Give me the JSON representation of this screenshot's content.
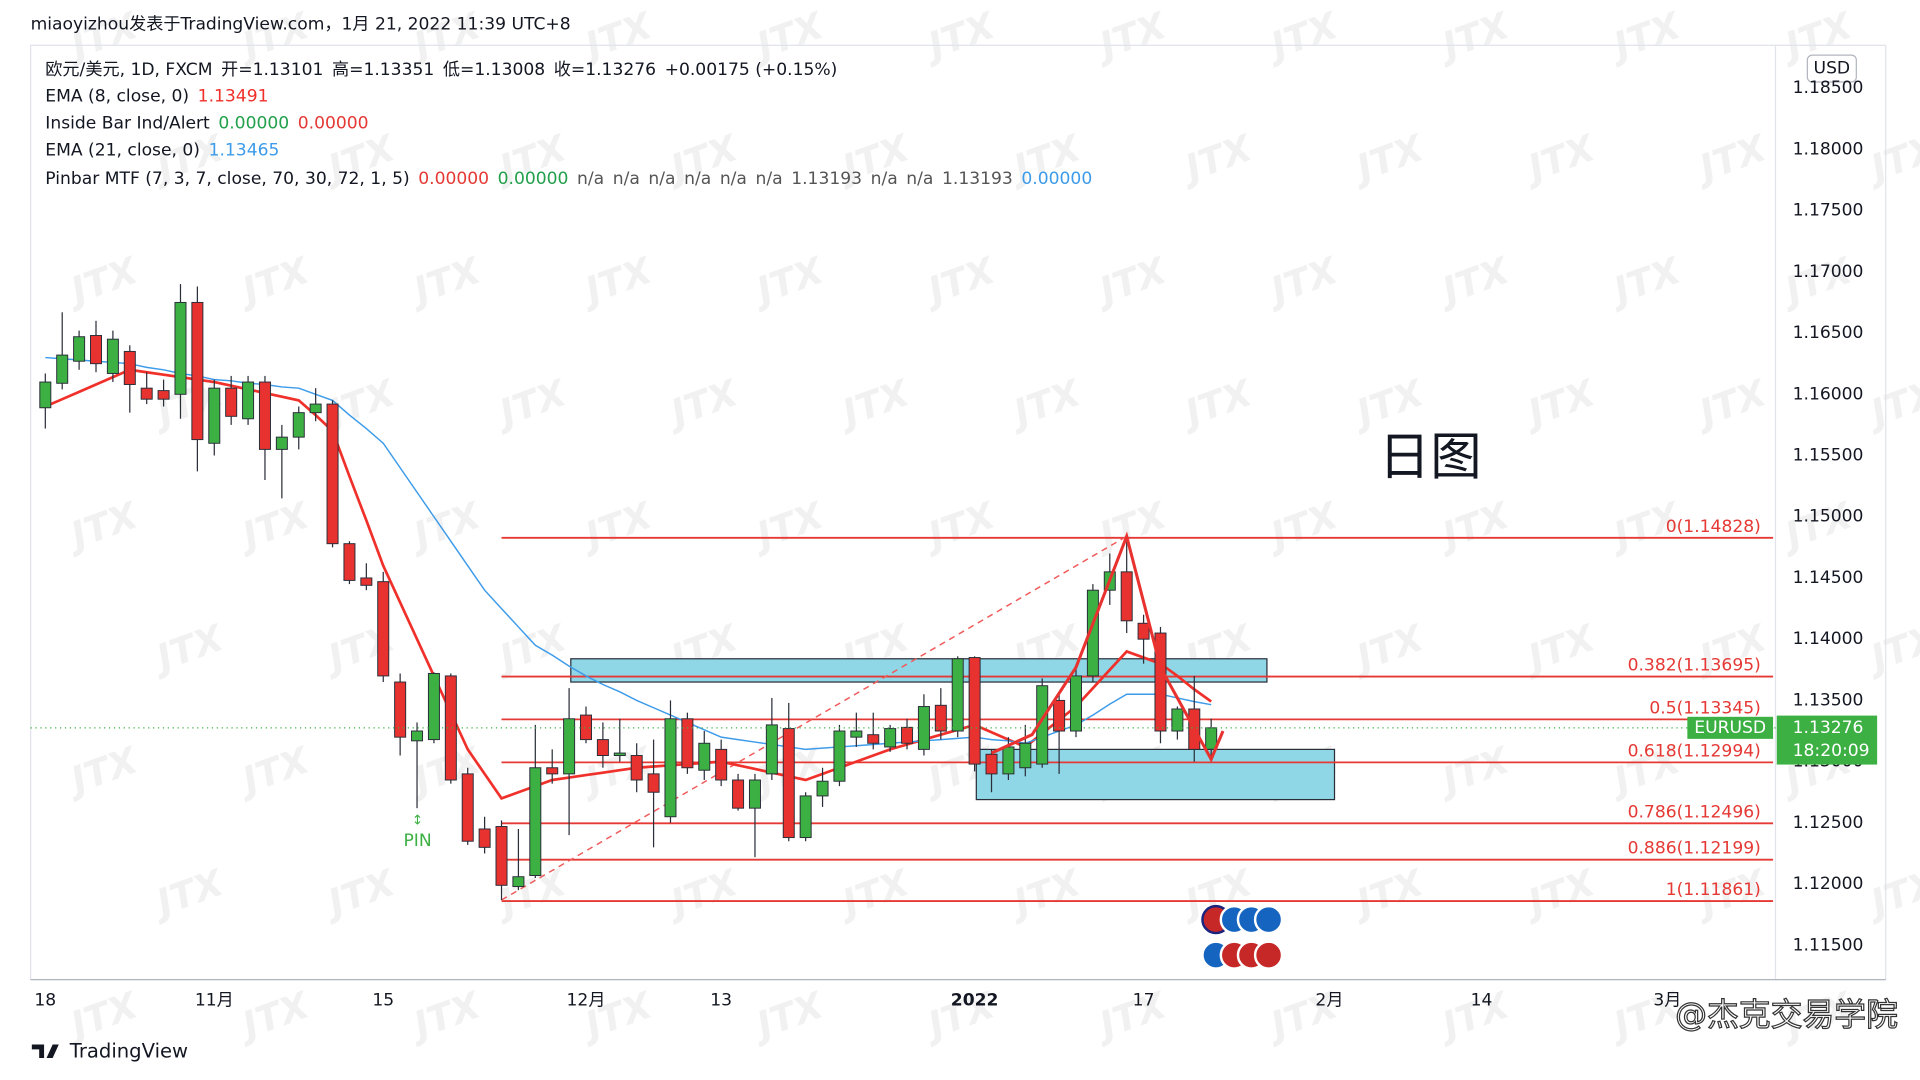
{
  "chart_data": {
    "type": "candlestick",
    "title": "miaoyizhou发表于TradingView.com，1月 21, 2022 11:39 UTC+8",
    "symbol": "欧元/美元, 1D, FXCM",
    "ohlc_labels": [
      "开=",
      "高=",
      "低=",
      "收="
    ],
    "change": "+0.00175 (+0.15%)",
    "x": [
      0,
      1,
      2,
      3,
      4,
      5,
      6,
      7,
      8,
      9,
      10,
      11,
      12,
      13,
      14,
      15,
      16,
      17,
      18,
      19,
      20,
      21,
      22,
      23,
      24,
      25,
      26,
      27,
      28,
      29,
      30,
      31,
      32,
      33,
      34,
      35,
      36,
      37,
      38,
      39,
      40,
      41,
      42,
      43,
      44,
      45,
      46,
      47,
      48,
      49,
      50,
      51,
      52,
      53,
      54,
      55,
      56,
      57,
      58,
      59,
      60,
      61,
      62,
      63,
      64,
      65,
      66,
      67,
      68,
      69
    ],
    "open": [
      1.1589,
      1.1609,
      1.1627,
      1.1648,
      1.1617,
      1.1635,
      1.1605,
      1.1603,
      1.16,
      1.1675,
      1.156,
      1.1605,
      1.158,
      1.161,
      1.1555,
      1.1565,
      1.1585,
      1.1592,
      1.1478,
      1.145,
      1.1447,
      1.1365,
      1.1317,
      1.1318,
      1.137,
      1.129,
      1.1245,
      1.1247,
      1.1198,
      1.1207,
      1.1295,
      1.129,
      1.1338,
      1.1318,
      1.1305,
      1.1305,
      1.129,
      1.1255,
      1.1335,
      1.1293,
      1.131,
      1.1285,
      1.1262,
      1.129,
      1.1327,
      1.1238,
      1.1272,
      1.1284,
      1.132,
      1.1322,
      1.1312,
      1.1328,
      1.131,
      1.1346,
      1.1325,
      1.1385,
      1.1306,
      1.129,
      1.1295,
      1.1298,
      1.135,
      1.1325,
      1.137,
      1.144,
      1.1455,
      1.1413,
      1.1405,
      1.1325,
      1.1343,
      1.13101
    ],
    "high": [
      1.1617,
      1.1667,
      1.1652,
      1.166,
      1.1652,
      1.164,
      1.1618,
      1.1612,
      1.169,
      1.1688,
      1.1612,
      1.1615,
      1.1615,
      1.1615,
      1.1575,
      1.159,
      1.1605,
      1.1595,
      1.148,
      1.1462,
      1.1455,
      1.1372,
      1.1332,
      1.1373,
      1.1372,
      1.1295,
      1.1255,
      1.1252,
      1.1245,
      1.133,
      1.131,
      1.136,
      1.1345,
      1.1332,
      1.1335,
      1.1315,
      1.1318,
      1.135,
      1.134,
      1.1325,
      1.1318,
      1.129,
      1.129,
      1.1352,
      1.1348,
      1.1275,
      1.1295,
      1.133,
      1.134,
      1.134,
      1.133,
      1.1335,
      1.1355,
      1.136,
      1.1386,
      1.1386,
      1.131,
      1.132,
      1.133,
      1.1368,
      1.1355,
      1.1378,
      1.1445,
      1.147,
      1.1483,
      1.142,
      1.141,
      1.1345,
      1.137,
      1.13351
    ],
    "low": [
      1.1572,
      1.1604,
      1.162,
      1.1618,
      1.161,
      1.1585,
      1.1592,
      1.159,
      1.158,
      1.1537,
      1.155,
      1.1575,
      1.1575,
      1.153,
      1.1515,
      1.1555,
      1.1578,
      1.1475,
      1.1445,
      1.144,
      1.1365,
      1.1305,
      1.1262,
      1.1315,
      1.1282,
      1.1232,
      1.1225,
      1.1187,
      1.1195,
      1.1205,
      1.1282,
      1.124,
      1.1315,
      1.1295,
      1.13,
      1.1275,
      1.123,
      1.125,
      1.129,
      1.1285,
      1.128,
      1.126,
      1.1222,
      1.1285,
      1.1235,
      1.1235,
      1.1263,
      1.128,
      1.1312,
      1.131,
      1.1308,
      1.131,
      1.1305,
      1.1318,
      1.132,
      1.1292,
      1.1275,
      1.1285,
      1.1288,
      1.1295,
      1.129,
      1.132,
      1.1365,
      1.1428,
      1.1405,
      1.138,
      1.1315,
      1.1318,
      1.13,
      1.13008
    ],
    "close": [
      1.161,
      1.1632,
      1.1647,
      1.1625,
      1.1645,
      1.1608,
      1.1596,
      1.1596,
      1.1675,
      1.1563,
      1.1605,
      1.1582,
      1.161,
      1.1555,
      1.1565,
      1.1585,
      1.1592,
      1.1478,
      1.1448,
      1.1444,
      1.137,
      1.132,
      1.1325,
      1.1372,
      1.1285,
      1.1235,
      1.123,
      1.1199,
      1.1206,
      1.1295,
      1.129,
      1.1335,
      1.1318,
      1.1305,
      1.1307,
      1.1285,
      1.1275,
      1.1335,
      1.1295,
      1.1315,
      1.1285,
      1.1262,
      1.1285,
      1.133,
      1.1238,
      1.1272,
      1.1284,
      1.1325,
      1.1325,
      1.1315,
      1.1327,
      1.1315,
      1.1345,
      1.1325,
      1.1384,
      1.1298,
      1.129,
      1.1312,
      1.1315,
      1.1362,
      1.1325,
      1.137,
      1.144,
      1.1455,
      1.1415,
      1.14,
      1.1325,
      1.1343,
      1.131,
      1.13276
    ],
    "up_color": "#3cb043",
    "down_color": "#e8322f",
    "series": [
      {
        "name": "EMA (8, close, 0)",
        "color": "#f0302a",
        "values": [
          1.159,
          1.1596,
          1.1602,
          1.1608,
          1.1614,
          1.162,
          1.1618,
          1.1616,
          1.1614,
          1.1612,
          1.161,
          1.1607,
          1.1604,
          1.1601,
          1.1598,
          1.1595,
          1.1583,
          1.157,
          1.1533,
          1.1497,
          1.146,
          1.143,
          1.14,
          1.137,
          1.134,
          1.131,
          1.129,
          1.127,
          1.1275,
          1.128,
          1.1285,
          1.1287,
          1.1289,
          1.1291,
          1.1293,
          1.1295,
          1.1296,
          1.1297,
          1.1298,
          1.1299,
          1.13,
          1.1297,
          1.1294,
          1.1291,
          1.1288,
          1.1285,
          1.129,
          1.1295,
          1.13,
          1.1305,
          1.131,
          1.1314,
          1.1318,
          1.1322,
          1.1326,
          1.133,
          1.1324,
          1.1318,
          1.1312,
          1.1323,
          1.1334,
          1.1345,
          1.136,
          1.1375,
          1.139,
          1.1385,
          1.138,
          1.137,
          1.1359,
          1.13491
        ]
      },
      {
        "name": "EMA (21, close, 0)",
        "color": "#3d9be9",
        "values": [
          1.163,
          1.1629,
          1.1628,
          1.1627,
          1.1626,
          1.1625,
          1.1622,
          1.162,
          1.1617,
          1.1615,
          1.1612,
          1.1611,
          1.1609,
          1.1608,
          1.1606,
          1.1605,
          1.16,
          1.1595,
          1.1583,
          1.1572,
          1.156,
          1.154,
          1.152,
          1.15,
          1.148,
          1.146,
          1.144,
          1.1425,
          1.141,
          1.1395,
          1.1387,
          1.1378,
          1.137,
          1.1363,
          1.1357,
          1.135,
          1.1344,
          1.1338,
          1.1332,
          1.1326,
          1.132,
          1.1318,
          1.1316,
          1.1314,
          1.1312,
          1.131,
          1.1311,
          1.1312,
          1.1313,
          1.1314,
          1.1315,
          1.1316,
          1.1317,
          1.1318,
          1.1319,
          1.132,
          1.1318,
          1.1317,
          1.1315,
          1.132,
          1.1325,
          1.133,
          1.1338,
          1.1347,
          1.1355,
          1.1355,
          1.1355,
          1.1352,
          1.1349,
          1.13465
        ]
      }
    ],
    "indicators": [
      {
        "name": "Inside Bar Ind/Alert",
        "outputs": [
          {
            "text": "0.00000",
            "color": "#22a04b"
          },
          {
            "text": "0.00000",
            "color": "#e53935"
          }
        ]
      },
      {
        "name": "Pinbar MTF (7, 3, 7, close, 70, 30, 72, 1, 5)",
        "outputs": [
          {
            "text": "0.00000",
            "color": "#e53935"
          },
          {
            "text": "0.00000",
            "color": "#22a04b"
          },
          {
            "text": "n/a",
            "color": "#555555"
          },
          {
            "text": "n/a",
            "color": "#555555"
          },
          {
            "text": "n/a",
            "color": "#555555"
          },
          {
            "text": "n/a",
            "color": "#555555"
          },
          {
            "text": "n/a",
            "color": "#555555"
          },
          {
            "text": "n/a",
            "color": "#555555"
          },
          {
            "text": "1.13193",
            "color": "#555555"
          },
          {
            "text": "n/a",
            "color": "#555555"
          },
          {
            "text": "n/a",
            "color": "#555555"
          },
          {
            "text": "1.13193",
            "color": "#555555"
          },
          {
            "text": "0.00000",
            "color": "#3d9be9"
          }
        ]
      }
    ],
    "fib_start": 27,
    "fib_color": "#e53935",
    "fib_levels": [
      {
        "value": 1.14828,
        "label": "0(1.14828)"
      },
      {
        "value": 1.13695,
        "label": "0.382(1.13695)"
      },
      {
        "value": 1.13345,
        "label": "0.5(1.13345)"
      },
      {
        "value": 1.12994,
        "label": "0.618(1.12994)"
      },
      {
        "value": 1.12496,
        "label": "0.786(1.12496)"
      },
      {
        "value": 1.12199,
        "label": "0.886(1.12199)"
      },
      {
        "value": 1.11861,
        "label": "1(1.11861)"
      }
    ],
    "zones": [
      {
        "x": [
          31.1,
          72.3
        ],
        "y": [
          1.1365,
          1.1384
        ]
      },
      {
        "x": [
          55.1,
          76.3
        ],
        "y": [
          1.1269,
          1.131
        ]
      }
    ],
    "zone_color": "#8fd6e6",
    "trend_line": [
      [
        27,
        1.1187
      ],
      [
        64,
        1.1484
      ]
    ],
    "zigzag": [
      [
        56,
        1.1307
      ],
      [
        58.4,
        1.1322
      ],
      [
        61,
        1.1377
      ],
      [
        64,
        1.1484
      ],
      [
        66,
        1.1377
      ],
      [
        69,
        1.1302
      ],
      [
        69.7,
        1.1325
      ]
    ],
    "symbol_label": "EURUSD",
    "countdown": "18:20:09",
    "annotations": [
      "日图",
      "PIN"
    ],
    "currency": "USD",
    "watermark": "JTX",
    "brand": "TradingView",
    "credit": "@杰克交易学院",
    "xlim": [
      -0.87,
      102.4
    ],
    "ylim": [
      1.1122,
      1.1885
    ],
    "xticks": [
      {
        "value": 0,
        "label": "18"
      },
      {
        "value": 10,
        "label": "11月"
      },
      {
        "value": 20,
        "label": "15"
      },
      {
        "value": 32,
        "label": "12月"
      },
      {
        "value": 40,
        "label": "13"
      },
      {
        "value": 55,
        "label": "2022"
      },
      {
        "value": 65,
        "label": "17"
      },
      {
        "value": 76,
        "label": "2月"
      },
      {
        "value": 85,
        "label": "14"
      },
      {
        "value": 96,
        "label": "3月"
      }
    ],
    "yticks": [
      {
        "value": 1.115,
        "label": "1.11500"
      },
      {
        "value": 1.12,
        "label": "1.12000"
      },
      {
        "value": 1.125,
        "label": "1.12500"
      },
      {
        "value": 1.13,
        "label": "1.13000"
      },
      {
        "value": 1.135,
        "label": "1.13500"
      },
      {
        "value": 1.14,
        "label": "1.14000"
      },
      {
        "value": 1.145,
        "label": "1.14500"
      },
      {
        "value": 1.15,
        "label": "1.15000"
      },
      {
        "value": 1.155,
        "label": "1.15500"
      },
      {
        "value": 1.16,
        "label": "1.16000"
      },
      {
        "value": 1.165,
        "label": "1.16500"
      },
      {
        "value": 1.17,
        "label": "1.17000"
      },
      {
        "value": 1.175,
        "label": "1.17500"
      },
      {
        "value": 1.18,
        "label": "1.18000"
      },
      {
        "value": 1.185,
        "label": "1.18500"
      }
    ],
    "grid": false
  }
}
